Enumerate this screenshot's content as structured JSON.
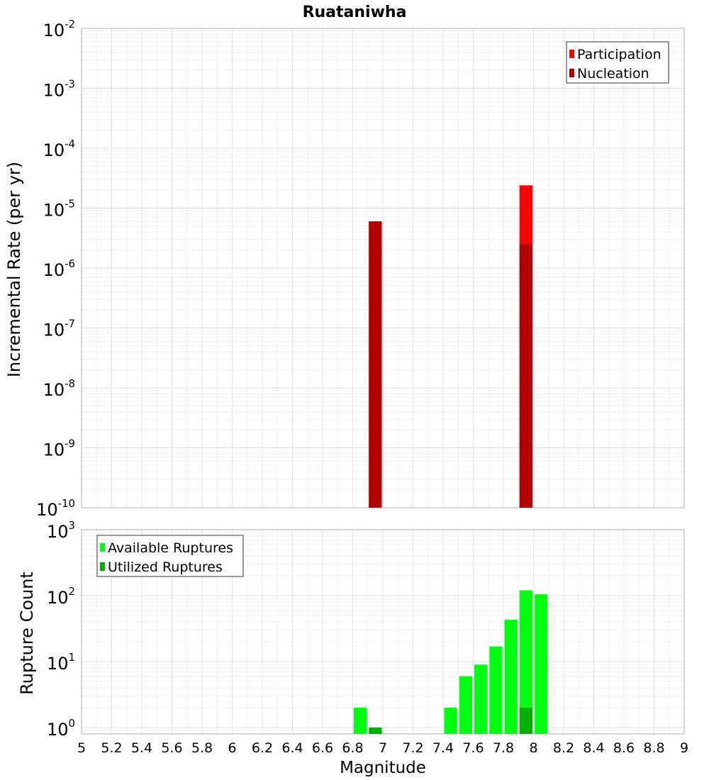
{
  "chart_data": [
    {
      "type": "bar",
      "title": "Ruataniwha",
      "xlabel": "",
      "ylabel": "Incremental Rate (per yr)",
      "y_scale": "log",
      "ylim": [
        1e-10,
        0.01
      ],
      "y_ticks": [
        {
          "base": "10",
          "exp": "-10"
        },
        {
          "base": "10",
          "exp": "-9"
        },
        {
          "base": "10",
          "exp": "-8"
        },
        {
          "base": "10",
          "exp": "-7"
        },
        {
          "base": "10",
          "exp": "-6"
        },
        {
          "base": "10",
          "exp": "-5"
        },
        {
          "base": "10",
          "exp": "-4"
        },
        {
          "base": "10",
          "exp": "-3"
        },
        {
          "base": "10",
          "exp": "-2"
        }
      ],
      "grid": true,
      "legend_position": "top-right",
      "series": [
        {
          "name": "Participation",
          "color": "#ff0000",
          "points": [
            {
              "x": 6.95,
              "y": 6e-06
            },
            {
              "x": 7.95,
              "y": 2.4e-05
            }
          ]
        },
        {
          "name": "Nucleation",
          "color": "#b00000",
          "points": [
            {
              "x": 6.95,
              "y": 6e-06
            },
            {
              "x": 7.95,
              "y": 2.5e-06
            }
          ]
        }
      ]
    },
    {
      "type": "bar",
      "title": "",
      "xlabel": "Magnitude",
      "ylabel": "Rupture Count",
      "y_scale": "log",
      "ylim": [
        0.8,
        1000
      ],
      "y_ticks": [
        {
          "base": "10",
          "exp": "0"
        },
        {
          "base": "10",
          "exp": "1"
        },
        {
          "base": "10",
          "exp": "2"
        },
        {
          "base": "10",
          "exp": "3"
        }
      ],
      "xlim": [
        5,
        9
      ],
      "x_ticks": [
        "5",
        "5.2",
        "5.4",
        "5.6",
        "5.8",
        "6",
        "6.2",
        "6.4",
        "6.6",
        "6.8",
        "7",
        "7.2",
        "7.4",
        "7.6",
        "7.8",
        "8",
        "8.2",
        "8.4",
        "8.6",
        "8.8",
        "9"
      ],
      "grid": true,
      "legend_position": "top-left",
      "series": [
        {
          "name": "Available Ruptures",
          "color": "#00ff10",
          "points": [
            {
              "x": 6.85,
              "y": 2
            },
            {
              "x": 7.45,
              "y": 2
            },
            {
              "x": 7.55,
              "y": 6
            },
            {
              "x": 7.65,
              "y": 9
            },
            {
              "x": 7.75,
              "y": 17
            },
            {
              "x": 7.85,
              "y": 43
            },
            {
              "x": 7.95,
              "y": 120
            },
            {
              "x": 8.05,
              "y": 105
            }
          ]
        },
        {
          "name": "Utilized Ruptures",
          "color": "#00b000",
          "points": [
            {
              "x": 6.95,
              "y": 1
            },
            {
              "x": 7.95,
              "y": 2
            }
          ]
        }
      ]
    }
  ]
}
